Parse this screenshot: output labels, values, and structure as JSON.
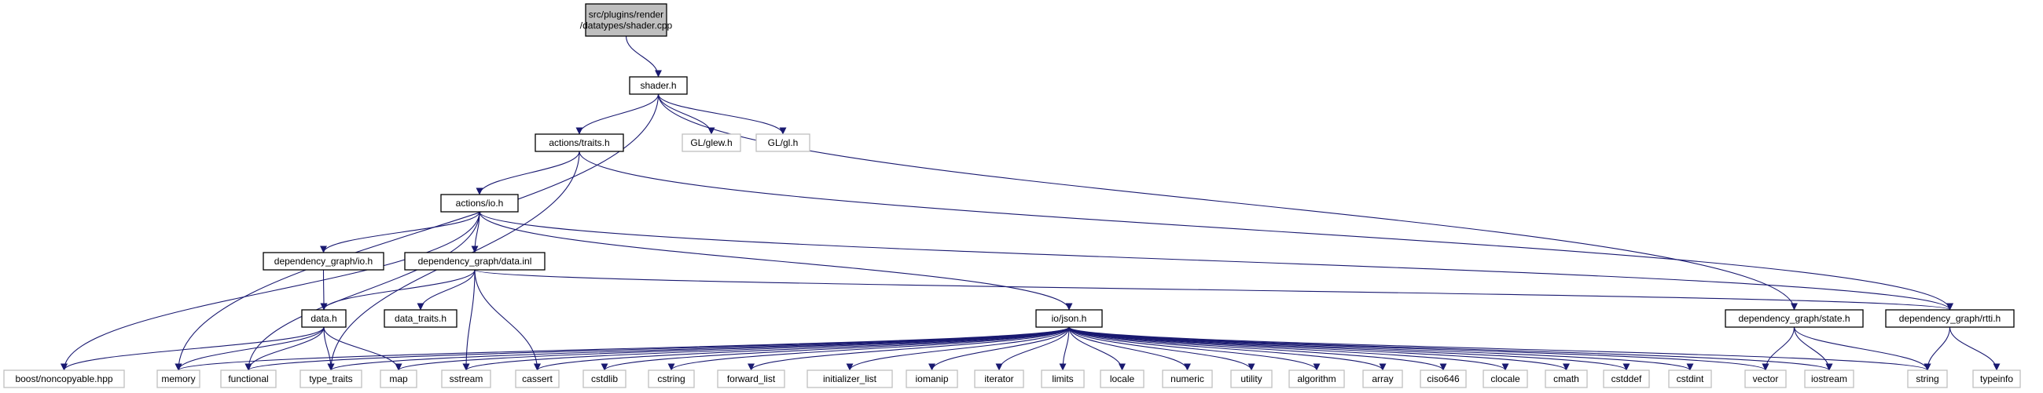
{
  "diagram": {
    "type": "include-dependency-graph",
    "colors": {
      "current_fill": "#bfbfbf",
      "documented_border": "#000000",
      "external_border": "#bfbfbf",
      "edge": "#191970"
    },
    "nodes": [
      {
        "id": "root",
        "lines": [
          "src/plugins/render",
          "/datatypes/shader.cpp"
        ],
        "kind": "current"
      },
      {
        "id": "shader_h",
        "lines": [
          "shader.h"
        ],
        "kind": "documented"
      },
      {
        "id": "traits_h",
        "lines": [
          "actions/traits.h"
        ],
        "kind": "documented"
      },
      {
        "id": "glew_h",
        "lines": [
          "GL/glew.h"
        ],
        "kind": "external"
      },
      {
        "id": "gl_h",
        "lines": [
          "GL/gl.h"
        ],
        "kind": "external"
      },
      {
        "id": "io_h",
        "lines": [
          "actions/io.h"
        ],
        "kind": "documented"
      },
      {
        "id": "dg_io_h",
        "lines": [
          "dependency_graph/io.h"
        ],
        "kind": "documented"
      },
      {
        "id": "dg_data_inl",
        "lines": [
          "dependency_graph/data.inl"
        ],
        "kind": "documented"
      },
      {
        "id": "data_h",
        "lines": [
          "data.h"
        ],
        "kind": "documented"
      },
      {
        "id": "data_traits_h",
        "lines": [
          "data_traits.h"
        ],
        "kind": "documented"
      },
      {
        "id": "json_h",
        "lines": [
          "io/json.h"
        ],
        "kind": "documented"
      },
      {
        "id": "state_h",
        "lines": [
          "dependency_graph/state.h"
        ],
        "kind": "documented"
      },
      {
        "id": "rtti_h",
        "lines": [
          "dependency_graph/rtti.h"
        ],
        "kind": "documented"
      },
      {
        "id": "noncopyable",
        "lines": [
          "boost/noncopyable.hpp"
        ],
        "kind": "external"
      },
      {
        "id": "memory",
        "lines": [
          "memory"
        ],
        "kind": "external"
      },
      {
        "id": "functional",
        "lines": [
          "functional"
        ],
        "kind": "external"
      },
      {
        "id": "type_traits",
        "lines": [
          "type_traits"
        ],
        "kind": "external"
      },
      {
        "id": "map",
        "lines": [
          "map"
        ],
        "kind": "external"
      },
      {
        "id": "sstream",
        "lines": [
          "sstream"
        ],
        "kind": "external"
      },
      {
        "id": "cassert",
        "lines": [
          "cassert"
        ],
        "kind": "external"
      },
      {
        "id": "cstdlib",
        "lines": [
          "cstdlib"
        ],
        "kind": "external"
      },
      {
        "id": "cstring",
        "lines": [
          "cstring"
        ],
        "kind": "external"
      },
      {
        "id": "forward_list",
        "lines": [
          "forward_list"
        ],
        "kind": "external"
      },
      {
        "id": "initializer_list",
        "lines": [
          "initializer_list"
        ],
        "kind": "external"
      },
      {
        "id": "iomanip",
        "lines": [
          "iomanip"
        ],
        "kind": "external"
      },
      {
        "id": "iterator",
        "lines": [
          "iterator"
        ],
        "kind": "external"
      },
      {
        "id": "limits",
        "lines": [
          "limits"
        ],
        "kind": "external"
      },
      {
        "id": "locale",
        "lines": [
          "locale"
        ],
        "kind": "external"
      },
      {
        "id": "numeric",
        "lines": [
          "numeric"
        ],
        "kind": "external"
      },
      {
        "id": "utility",
        "lines": [
          "utility"
        ],
        "kind": "external"
      },
      {
        "id": "algorithm",
        "lines": [
          "algorithm"
        ],
        "kind": "external"
      },
      {
        "id": "array",
        "lines": [
          "array"
        ],
        "kind": "external"
      },
      {
        "id": "ciso646",
        "lines": [
          "ciso646"
        ],
        "kind": "external"
      },
      {
        "id": "clocale",
        "lines": [
          "clocale"
        ],
        "kind": "external"
      },
      {
        "id": "cmath",
        "lines": [
          "cmath"
        ],
        "kind": "external"
      },
      {
        "id": "cstddef",
        "lines": [
          "cstddef"
        ],
        "kind": "external"
      },
      {
        "id": "cstdint",
        "lines": [
          "cstdint"
        ],
        "kind": "external"
      },
      {
        "id": "vector",
        "lines": [
          "vector"
        ],
        "kind": "external"
      },
      {
        "id": "iostream",
        "lines": [
          "iostream"
        ],
        "kind": "external"
      },
      {
        "id": "string",
        "lines": [
          "string"
        ],
        "kind": "external"
      },
      {
        "id": "typeinfo",
        "lines": [
          "typeinfo"
        ],
        "kind": "external"
      }
    ],
    "edges": [
      [
        "root",
        "shader_h"
      ],
      [
        "shader_h",
        "traits_h"
      ],
      [
        "shader_h",
        "glew_h"
      ],
      [
        "shader_h",
        "gl_h"
      ],
      [
        "shader_h",
        "memory"
      ],
      [
        "shader_h",
        "state_h"
      ],
      [
        "traits_h",
        "io_h"
      ],
      [
        "traits_h",
        "type_traits"
      ],
      [
        "traits_h",
        "rtti_h"
      ],
      [
        "io_h",
        "dg_io_h"
      ],
      [
        "io_h",
        "dg_data_inl"
      ],
      [
        "io_h",
        "json_h"
      ],
      [
        "io_h",
        "noncopyable"
      ],
      [
        "io_h",
        "functional"
      ],
      [
        "io_h",
        "rtti_h"
      ],
      [
        "dg_io_h",
        "data_h"
      ],
      [
        "dg_data_inl",
        "data_h"
      ],
      [
        "dg_data_inl",
        "data_traits_h"
      ],
      [
        "dg_data_inl",
        "sstream"
      ],
      [
        "dg_data_inl",
        "cassert"
      ],
      [
        "dg_data_inl",
        "rtti_h"
      ],
      [
        "data_h",
        "noncopyable"
      ],
      [
        "data_h",
        "memory"
      ],
      [
        "data_h",
        "functional"
      ],
      [
        "data_h",
        "type_traits"
      ],
      [
        "data_h",
        "map"
      ],
      [
        "json_h",
        "memory"
      ],
      [
        "json_h",
        "functional"
      ],
      [
        "json_h",
        "type_traits"
      ],
      [
        "json_h",
        "map"
      ],
      [
        "json_h",
        "sstream"
      ],
      [
        "json_h",
        "cassert"
      ],
      [
        "json_h",
        "cstdlib"
      ],
      [
        "json_h",
        "cstring"
      ],
      [
        "json_h",
        "forward_list"
      ],
      [
        "json_h",
        "initializer_list"
      ],
      [
        "json_h",
        "iomanip"
      ],
      [
        "json_h",
        "iterator"
      ],
      [
        "json_h",
        "limits"
      ],
      [
        "json_h",
        "locale"
      ],
      [
        "json_h",
        "numeric"
      ],
      [
        "json_h",
        "utility"
      ],
      [
        "json_h",
        "algorithm"
      ],
      [
        "json_h",
        "array"
      ],
      [
        "json_h",
        "ciso646"
      ],
      [
        "json_h",
        "clocale"
      ],
      [
        "json_h",
        "cmath"
      ],
      [
        "json_h",
        "cstddef"
      ],
      [
        "json_h",
        "cstdint"
      ],
      [
        "json_h",
        "vector"
      ],
      [
        "json_h",
        "iostream"
      ],
      [
        "json_h",
        "string"
      ],
      [
        "state_h",
        "vector"
      ],
      [
        "state_h",
        "iostream"
      ],
      [
        "state_h",
        "string"
      ],
      [
        "rtti_h",
        "string"
      ],
      [
        "rtti_h",
        "typeinfo"
      ]
    ]
  }
}
